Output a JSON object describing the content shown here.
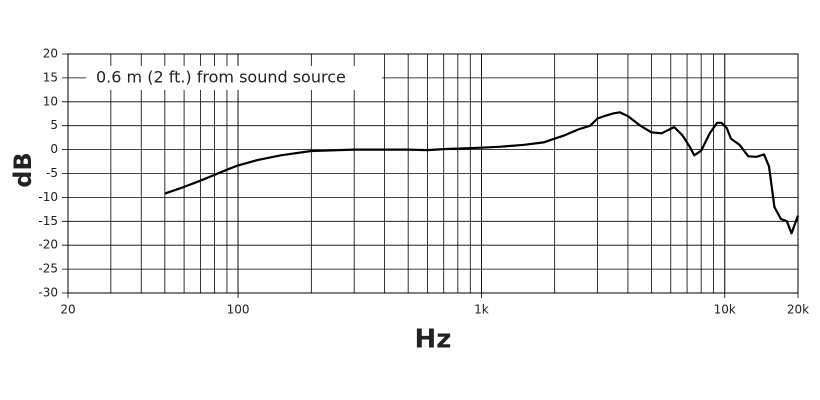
{
  "chart_data": {
    "type": "line",
    "annotation": "0.6 m (2 ft.) from sound source",
    "annotation_y": 15,
    "xlabel": "Hz",
    "ylabel": "dB",
    "xscale": "log",
    "minor_grid": true,
    "grid": true,
    "xlim": [
      20,
      20000
    ],
    "ylim": [
      -30,
      20
    ],
    "xticks": [
      20,
      100,
      {
        "value": 1000,
        "label": "1k"
      },
      {
        "value": 10000,
        "label": "10k"
      },
      {
        "value": 20000,
        "label": "20k"
      }
    ],
    "yticks": [
      -30,
      -25,
      -20,
      -15,
      -10,
      -5,
      0,
      5,
      10,
      15,
      20
    ],
    "x": [
      50,
      60,
      70,
      80,
      90,
      100,
      120,
      150,
      200,
      300,
      400,
      500,
      600,
      700,
      800,
      1000,
      1200,
      1500,
      1800,
      2000,
      2200,
      2500,
      2800,
      3000,
      3200,
      3500,
      3700,
      4000,
      4500,
      5000,
      5500,
      6200,
      6700,
      7200,
      7500,
      8000,
      8700,
      9300,
      9700,
      10200,
      10600,
      11500,
      12500,
      13500,
      14500,
      15200,
      16000,
      17000,
      18000,
      18800,
      20000
    ],
    "series": [
      {
        "color": "#000000",
        "values": [
          -9.2,
          -7.8,
          -6.5,
          -5.3,
          -4.2,
          -3.3,
          -2.2,
          -1.2,
          -0.3,
          0,
          0,
          0,
          -0.1,
          0.1,
          0.2,
          0.4,
          0.6,
          1,
          1.5,
          2.3,
          3,
          4.2,
          5,
          6.5,
          7,
          7.6,
          7.8,
          7,
          5,
          3.6,
          3.4,
          4.7,
          3,
          0.5,
          -1.2,
          -0.2,
          3.5,
          5.6,
          5.6,
          4.5,
          2.3,
          1,
          -1.4,
          -1.5,
          -1,
          -3.5,
          -12,
          -14.5,
          -15,
          -17.5,
          -13.8
        ]
      }
    ]
  }
}
